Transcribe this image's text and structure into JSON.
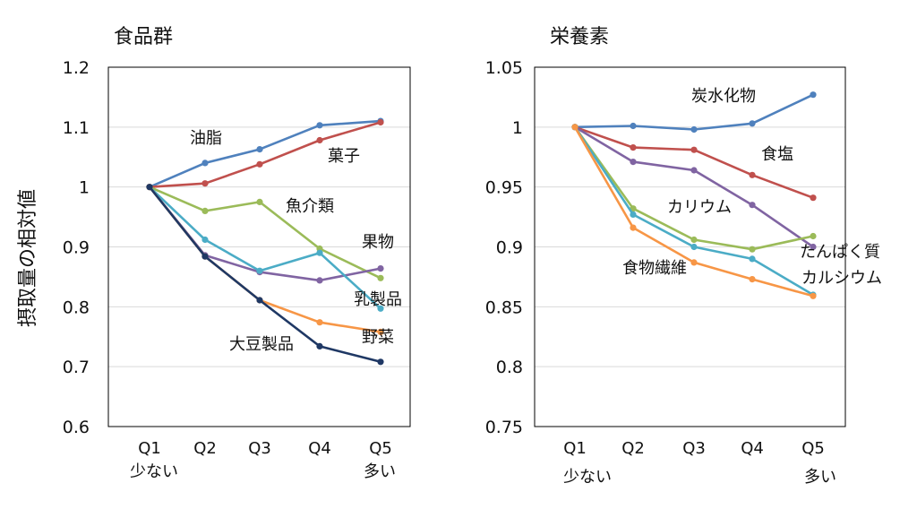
{
  "ylabel": "摂取量の相対値",
  "chart_data": [
    {
      "type": "line",
      "title": "食品群",
      "categories": [
        "Q1",
        "Q2",
        "Q3",
        "Q4",
        "Q5"
      ],
      "x_sublabels": {
        "first": "少ない",
        "last": "多い"
      },
      "ylim": [
        0.6,
        1.2
      ],
      "yticks": [
        "0.6",
        "0.7",
        "0.8",
        "0.9",
        "1",
        "1.1",
        "1.2"
      ],
      "grid": true,
      "legend": "inline labels",
      "series": [
        {
          "name": "油脂",
          "color": "#4F81BD",
          "values": [
            1.0,
            1.04,
            1.063,
            1.103,
            1.11
          ]
        },
        {
          "name": "菓子",
          "color": "#C0504D",
          "values": [
            1.0,
            1.006,
            1.038,
            1.078,
            1.108
          ]
        },
        {
          "name": "魚介類",
          "color": "#9BBB59",
          "values": [
            1.0,
            0.96,
            0.975,
            0.897,
            0.848
          ]
        },
        {
          "name": "果物",
          "color": "#8064A2",
          "values": [
            1.0,
            0.886,
            0.858,
            0.844,
            0.864
          ]
        },
        {
          "name": "乳製品",
          "color": "#4BACC6",
          "values": [
            1.0,
            0.912,
            0.86,
            0.89,
            0.797
          ]
        },
        {
          "name": "野菜",
          "color": "#F79646",
          "values": [
            1.0,
            0.884,
            0.811,
            0.774,
            0.758
          ]
        },
        {
          "name": "大豆製品",
          "color": "#1F3864",
          "values": [
            1.0,
            0.884,
            0.811,
            0.734,
            0.708
          ]
        }
      ]
    },
    {
      "type": "line",
      "title": "栄養素",
      "categories": [
        "Q1",
        "Q2",
        "Q3",
        "Q4",
        "Q5"
      ],
      "x_sublabels": {
        "first": "少ない",
        "last": "多い"
      },
      "ylim": [
        0.75,
        1.05
      ],
      "yticks": [
        "0.75",
        "0.8",
        "0.85",
        "0.9",
        "0.95",
        "1",
        "1.05"
      ],
      "grid": true,
      "legend": "inline labels",
      "series": [
        {
          "name": "炭水化物",
          "color": "#4F81BD",
          "values": [
            1.0,
            1.001,
            0.998,
            1.003,
            1.027
          ]
        },
        {
          "name": "食塩",
          "color": "#C0504D",
          "values": [
            1.0,
            0.983,
            0.981,
            0.96,
            0.941
          ]
        },
        {
          "name": "カリウム",
          "color": "#8064A2",
          "values": [
            1.0,
            0.971,
            0.964,
            0.935,
            0.9
          ]
        },
        {
          "name": "たんぱく質",
          "color": "#9BBB59",
          "values": [
            1.0,
            0.932,
            0.906,
            0.898,
            0.909
          ]
        },
        {
          "name": "カルシウム",
          "color": "#4BACC6",
          "values": [
            1.0,
            0.927,
            0.9,
            0.89,
            0.86
          ]
        },
        {
          "name": "食物繊維",
          "color": "#F79646",
          "values": [
            1.0,
            0.916,
            0.887,
            0.873,
            0.859
          ]
        }
      ]
    }
  ]
}
